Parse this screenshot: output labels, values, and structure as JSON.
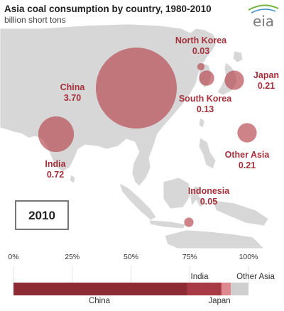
{
  "chart_data": [
    {
      "type": "bubble-map",
      "title": "Asia coal consumption  by country, 1980-2010",
      "subtitle": "billion short tons",
      "year": "2010",
      "logo": "eia",
      "bubble_color": "#b5484f",
      "points": [
        {
          "name": "China",
          "value": 3.7,
          "value_label": "3.70"
        },
        {
          "name": "India",
          "value": 0.72,
          "value_label": "0.72"
        },
        {
          "name": "North Korea",
          "value": 0.03,
          "value_label": "0.03"
        },
        {
          "name": "South Korea",
          "value": 0.13,
          "value_label": "0.13"
        },
        {
          "name": "Japan",
          "value": 0.21,
          "value_label": "0.21"
        },
        {
          "name": "Other Asia",
          "value": 0.21,
          "value_label": "0.21"
        },
        {
          "name": "Indonesia",
          "value": 0.05,
          "value_label": "0.05"
        }
      ]
    },
    {
      "type": "stacked-bar",
      "ticks": [
        "0%",
        "25%",
        "50%",
        "75%",
        "100%"
      ],
      "xlim": [
        0,
        100
      ],
      "segments": [
        {
          "name": "China",
          "share": 74,
          "color": "#8c2b34"
        },
        {
          "name": "India",
          "share": 14.5,
          "color": "#a83a45"
        },
        {
          "name": "Japan",
          "share": 4,
          "color": "#e08890"
        },
        {
          "name": "Other Asia",
          "share": 7.5,
          "color": "#cfcfcf"
        }
      ]
    }
  ]
}
